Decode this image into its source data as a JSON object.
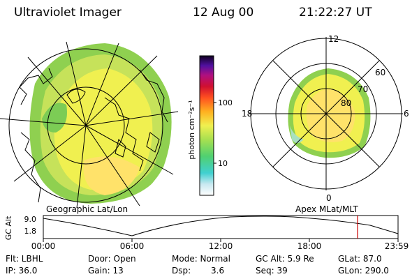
{
  "header": {
    "instrument": "Ultraviolet Imager",
    "date": "12 Aug 00",
    "time": "21:22:27 UT"
  },
  "geo_panel": {
    "label": "Geographic Lat/Lon"
  },
  "apex_panel": {
    "label": "Apex MLat/MLT",
    "mlt_labels": [
      "12",
      "18",
      "6",
      "0"
    ],
    "mlat_labels": [
      "60",
      "70",
      "80"
    ]
  },
  "colorbar": {
    "unit_label": "photon cm⁻²s⁻¹",
    "ticks": [
      "100",
      "10"
    ]
  },
  "altitude_plot": {
    "ylabel": "GC Alt",
    "yticks": [
      "9.0",
      "1.8"
    ],
    "time_ticks": [
      "00:00",
      "06:00",
      "12:00",
      "18:00",
      "23:59"
    ]
  },
  "info": {
    "flt": "Flt: LBHL",
    "door": "Door: Open",
    "mode": "Mode: Normal",
    "gc_alt": "GC Alt: 5.9 Re",
    "glat": "GLat: 87.0",
    "ip": "IP: 36.0",
    "gain": "Gain: 13",
    "dsp_label": "Dsp:",
    "dsp_value": "3.6",
    "seq": "Seq: 39",
    "glon": "GLon: 290.0"
  },
  "colors": {
    "imagery_main": "#f0f050",
    "imagery_green": "#8fd050",
    "imagery_bright": "#ffe26a",
    "altitude_marker": "#cc0000"
  }
}
